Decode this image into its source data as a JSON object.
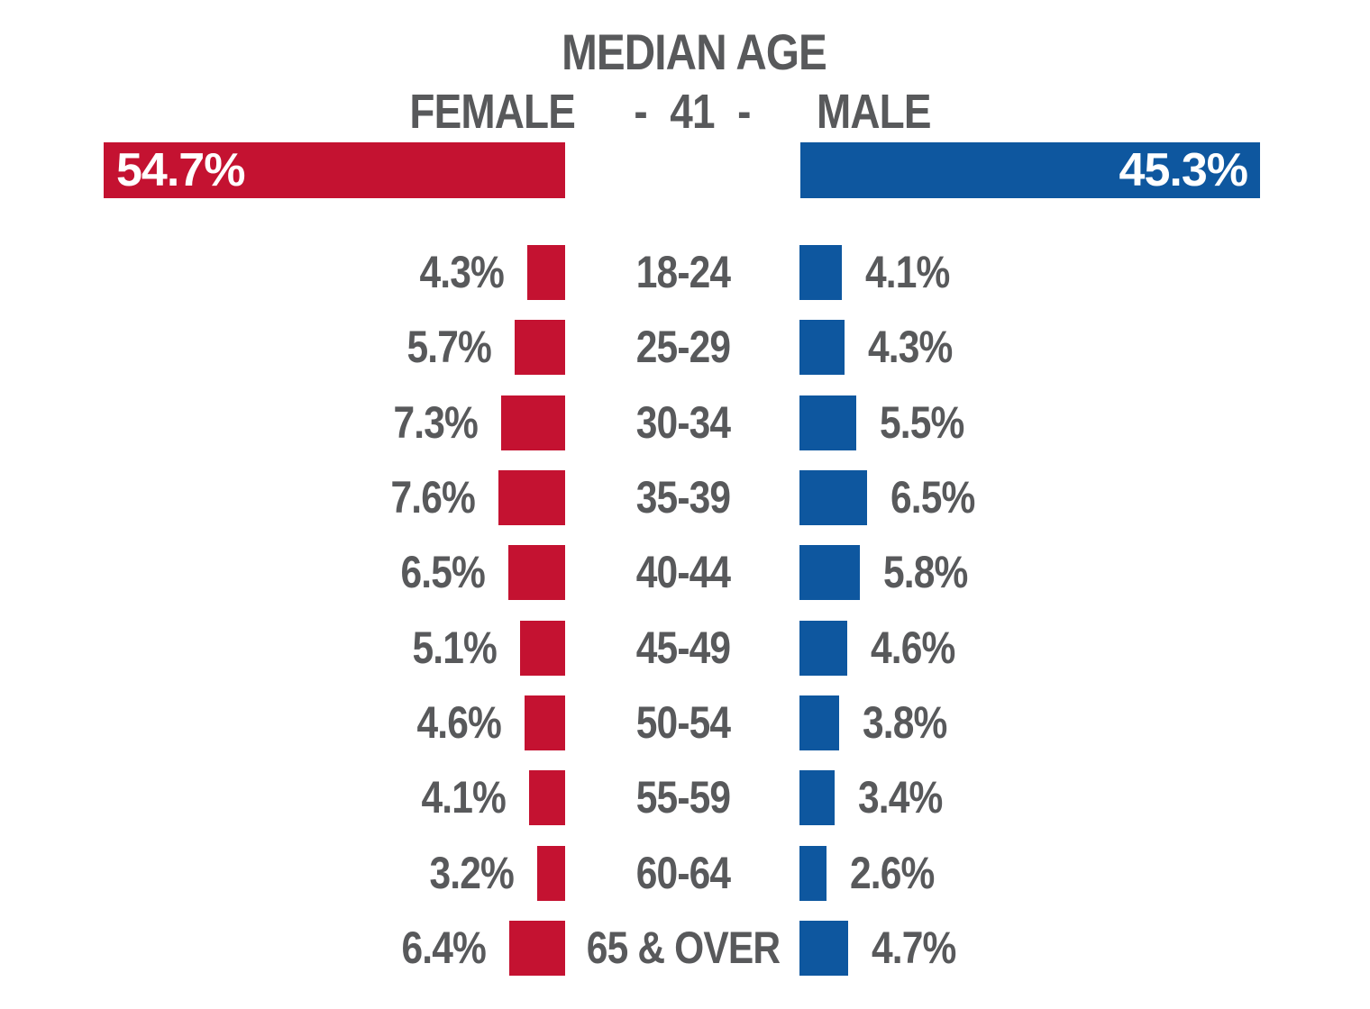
{
  "title": "MEDIAN AGE",
  "header": {
    "female": "FEMALE",
    "median": "- 41 -",
    "male": "MALE"
  },
  "totals": {
    "female": "54.7%",
    "male": "45.3%"
  },
  "colors": {
    "female_bar": "#C41231",
    "male_bar": "#0E579F",
    "text_gray": "#58595B",
    "background": "#FFFFFF"
  },
  "rows": [
    {
      "age": "18-24",
      "female": "4.3%",
      "male": "4.1%"
    },
    {
      "age": "25-29",
      "female": "5.7%",
      "male": "4.3%"
    },
    {
      "age": "30-34",
      "female": "7.3%",
      "male": "5.5%"
    },
    {
      "age": "35-39",
      "female": "7.6%",
      "male": "6.5%"
    },
    {
      "age": "40-44",
      "female": "6.5%",
      "male": "5.8%"
    },
    {
      "age": "45-49",
      "female": "5.1%",
      "male": "4.6%"
    },
    {
      "age": "50-54",
      "female": "4.6%",
      "male": "3.8%"
    },
    {
      "age": "55-59",
      "female": "4.1%",
      "male": "3.4%"
    },
    {
      "age": "60-64",
      "female": "3.2%",
      "male": "2.6%"
    },
    {
      "age": "65 & OVER",
      "female": "6.4%",
      "male": "4.7%"
    }
  ],
  "chart_data": {
    "type": "bar",
    "subtype": "population-pyramid",
    "title": "MEDIAN AGE",
    "median_age": 41,
    "unit": "percent of population",
    "categories": [
      "18-24",
      "25-29",
      "30-34",
      "35-39",
      "40-44",
      "45-49",
      "50-54",
      "55-59",
      "60-64",
      "65 & OVER"
    ],
    "series": [
      {
        "name": "FEMALE",
        "total_percent": 54.7,
        "values": [
          4.3,
          5.7,
          7.3,
          7.6,
          6.5,
          5.1,
          4.6,
          4.1,
          3.2,
          6.4
        ],
        "color": "#C41231"
      },
      {
        "name": "MALE",
        "total_percent": 45.3,
        "values": [
          4.1,
          4.3,
          5.5,
          6.5,
          5.8,
          4.6,
          3.8,
          3.4,
          2.6,
          4.7
        ],
        "color": "#0E579F"
      }
    ],
    "legend_position": "top",
    "grid": false,
    "orientation": "horizontal, bars grow outward from center age-label column"
  }
}
